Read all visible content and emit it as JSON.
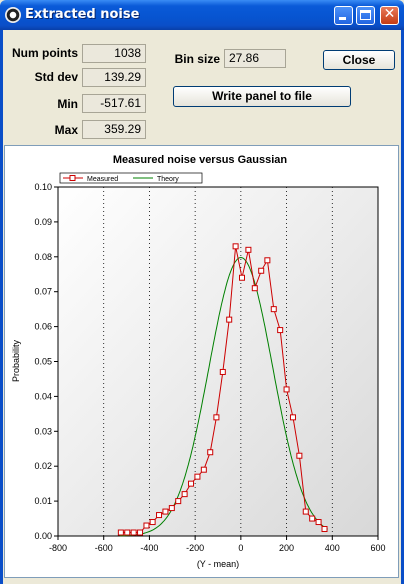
{
  "window": {
    "title": "Extracted noise"
  },
  "stats": [
    {
      "label": "Num points",
      "value": "1038"
    },
    {
      "label": "Std dev",
      "value": "139.29"
    },
    {
      "label": "Min",
      "value": "-517.61"
    },
    {
      "label": "Max",
      "value": "359.29"
    }
  ],
  "bin": {
    "label": "Bin size",
    "value": "27.86"
  },
  "buttons": {
    "close": "Close",
    "write_panel": "Write panel to file"
  },
  "chart_data": {
    "type": "line",
    "title": "Measured noise versus Gaussian",
    "xlabel": "(Y - mean)",
    "ylabel": "Probability",
    "xlim": [
      -800,
      600
    ],
    "ylim": [
      0,
      0.1
    ],
    "x_ticks": [
      "-800",
      "-600",
      "-400",
      "-200",
      "0",
      "200",
      "400",
      "600"
    ],
    "y_ticks": [
      "0.00",
      "0.01",
      "0.02",
      "0.03",
      "0.04",
      "0.05",
      "0.06",
      "0.07",
      "0.08",
      "0.09",
      "0.10"
    ],
    "legend_position": "top-left",
    "grid": "vertical dotted",
    "series": [
      {
        "name": "Measured",
        "color": "#cc0000",
        "marker": "square",
        "x": [
          -525,
          -497,
          -469,
          -441,
          -413,
          -386,
          -358,
          -330,
          -302,
          -274,
          -246,
          -218,
          -190,
          -162,
          -134,
          -107,
          -79,
          -51,
          -23,
          5,
          33,
          61,
          89,
          116,
          144,
          172,
          200,
          228,
          256,
          284,
          312,
          340,
          366
        ],
        "y": [
          0.001,
          0.001,
          0.001,
          0.001,
          0.003,
          0.004,
          0.006,
          0.007,
          0.008,
          0.01,
          0.012,
          0.015,
          0.017,
          0.019,
          0.024,
          0.034,
          0.047,
          0.062,
          0.083,
          0.074,
          0.082,
          0.071,
          0.076,
          0.079,
          0.065,
          0.059,
          0.042,
          0.034,
          0.023,
          0.007,
          0.005,
          0.004,
          0.002
        ]
      },
      {
        "name": "Theory",
        "color": "#008000",
        "marker": "none",
        "mean": 0,
        "std": 139.29,
        "bin": 27.86
      }
    ]
  }
}
